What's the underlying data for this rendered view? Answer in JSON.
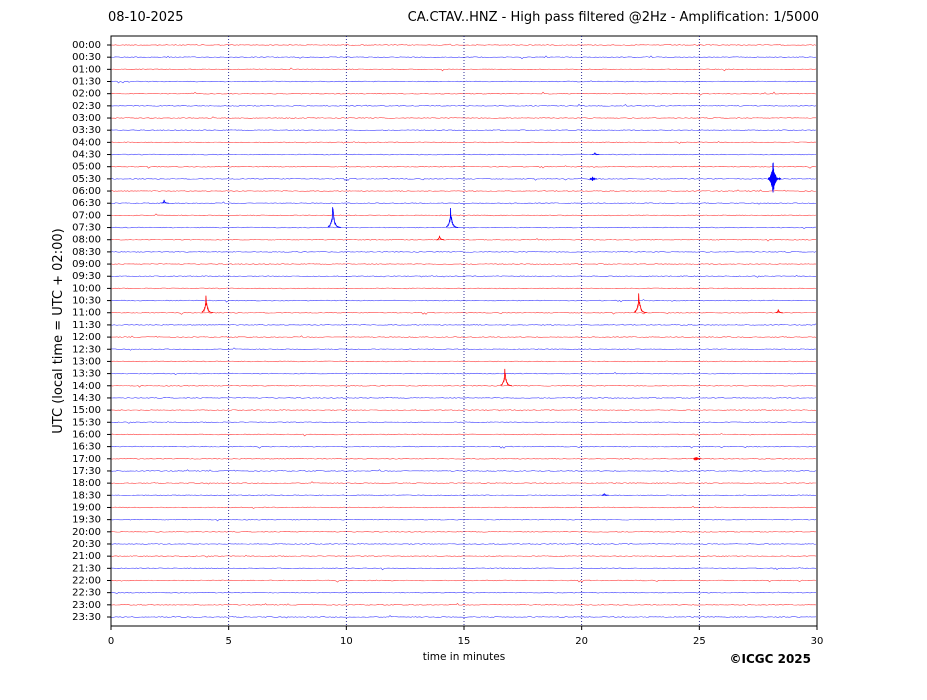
{
  "chart_data": {
    "type": "helicorder",
    "date": "08-10-2025",
    "title": "CA.CTAV..HNZ - High pass filtered @2Hz - Amplification: 1/5000",
    "y_label": "UTC (local time = UTC + 02:00)",
    "x_label": "time in minutes",
    "copyright": "©ICGC 2025",
    "categories": [
      "00:00",
      "00:30",
      "01:00",
      "01:30",
      "02:00",
      "02:30",
      "03:00",
      "03:30",
      "04:00",
      "04:30",
      "05:00",
      "05:30",
      "06:00",
      "06:30",
      "07:00",
      "07:30",
      "08:00",
      "08:30",
      "09:00",
      "09:30",
      "10:00",
      "10:30",
      "11:00",
      "11:30",
      "12:00",
      "12:30",
      "13:00",
      "13:30",
      "14:00",
      "14:30",
      "15:00",
      "15:30",
      "16:00",
      "16:30",
      "17:00",
      "17:30",
      "18:00",
      "18:30",
      "19:00",
      "19:30",
      "20:00",
      "20:30",
      "21:00",
      "21:30",
      "22:00",
      "22:30",
      "23:00",
      "23:30"
    ],
    "colors": [
      "#ff0000",
      "#0000ff"
    ],
    "xlim": [
      0,
      30
    ],
    "xticks": [
      0,
      5,
      10,
      15,
      20,
      25,
      30
    ],
    "grid": true,
    "events": [
      {
        "row": 11,
        "minute": 28.2,
        "amplitude": 2.0
      },
      {
        "row": 15,
        "minute": 9.5,
        "amplitude": 2.1
      },
      {
        "row": 15,
        "minute": 14.5,
        "amplitude": 1.8
      },
      {
        "row": 22,
        "minute": 4.1,
        "amplitude": 1.6
      },
      {
        "row": 22,
        "minute": 22.5,
        "amplitude": 1.9
      },
      {
        "row": 28,
        "minute": 16.8,
        "amplitude": 1.6
      },
      {
        "row": 13,
        "minute": 2.3,
        "amplitude": 0.3
      },
      {
        "row": 16,
        "minute": 14.0,
        "amplitude": 0.4
      },
      {
        "row": 22,
        "minute": 28.4,
        "amplitude": 0.3
      },
      {
        "row": 9,
        "minute": 20.6,
        "amplitude": 0.2
      },
      {
        "row": 11,
        "minute": 20.5,
        "amplitude": 0.25
      },
      {
        "row": 34,
        "minute": 24.9,
        "amplitude": 0.25
      },
      {
        "row": 37,
        "minute": 21.0,
        "amplitude": 0.2
      }
    ]
  }
}
